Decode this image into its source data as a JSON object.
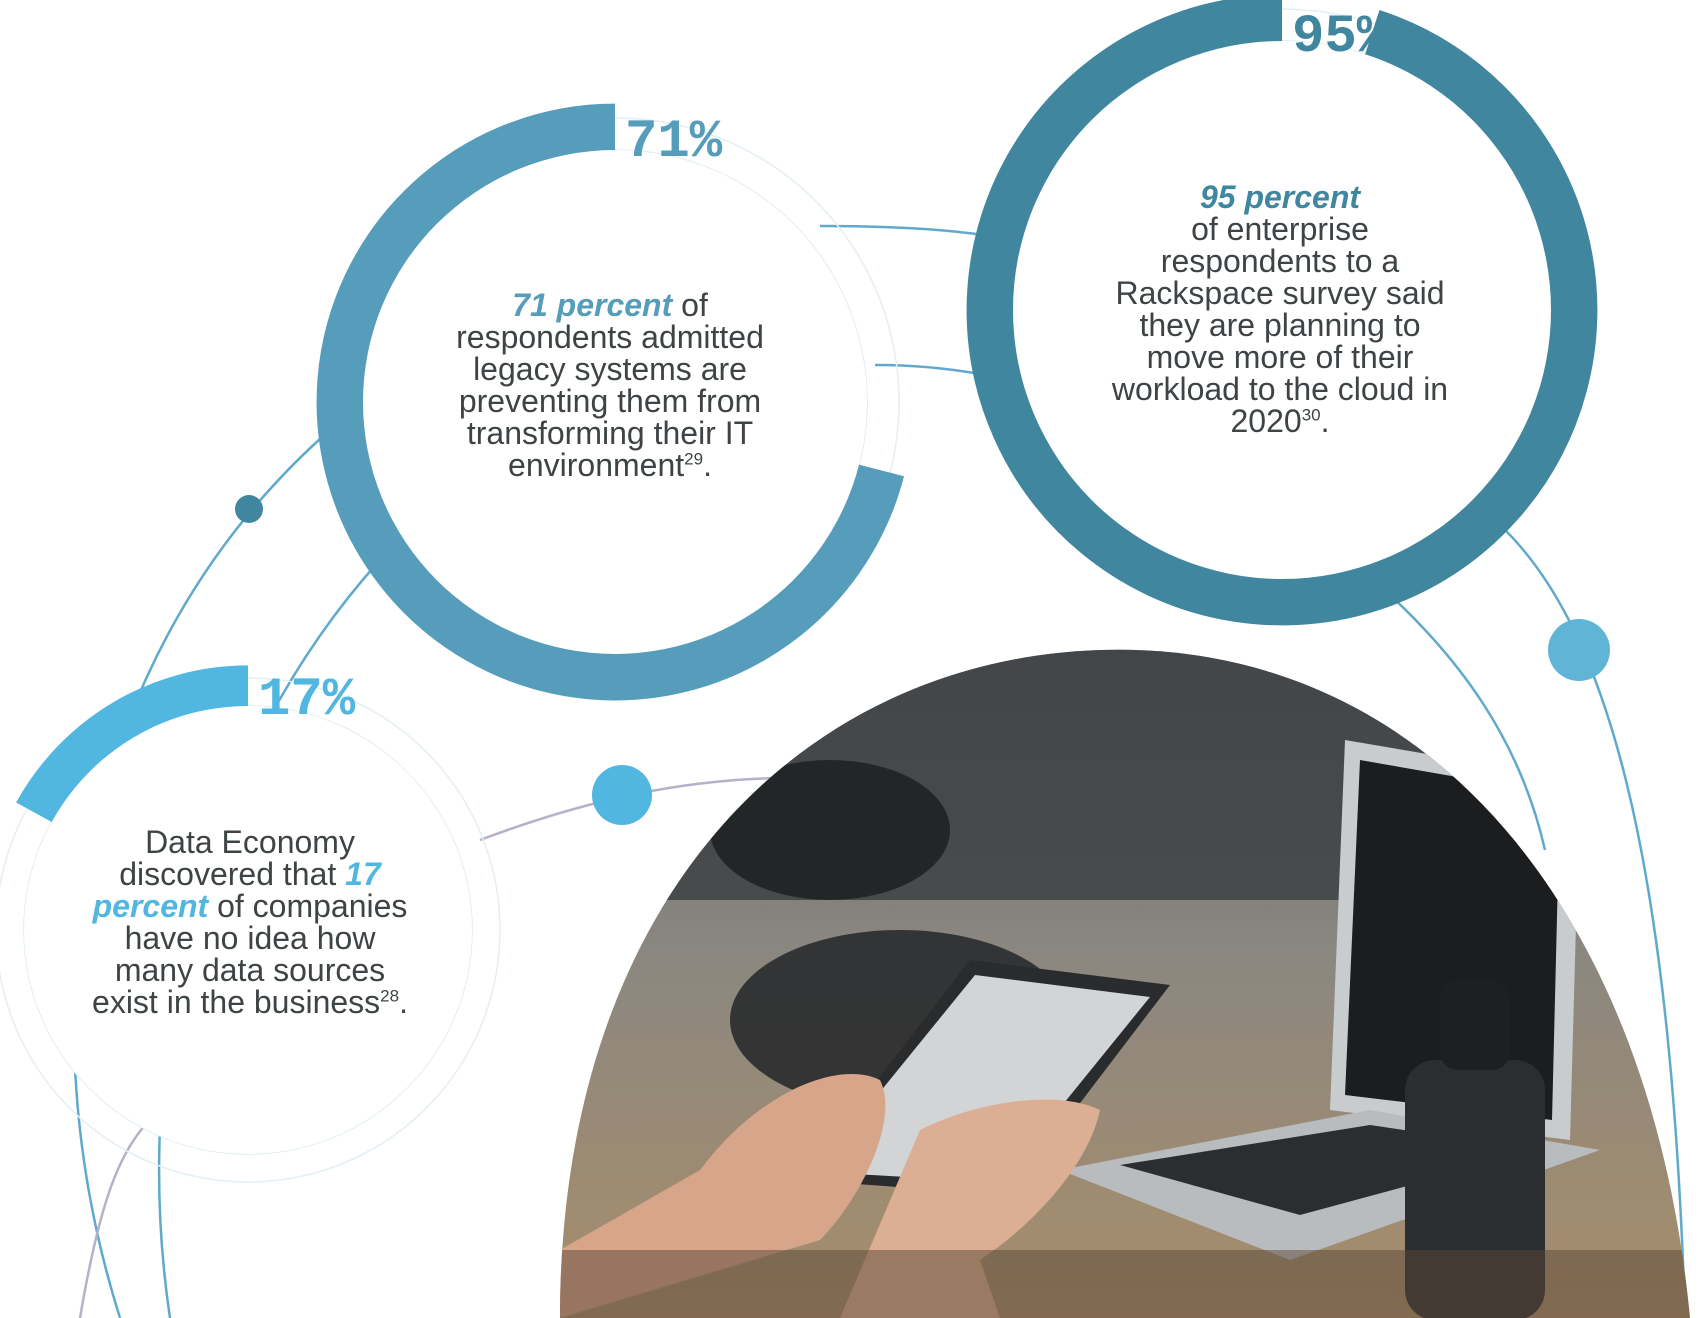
{
  "colors": {
    "stat_71": "#559dba",
    "stat_95": "#40869f",
    "stat_17": "#52b7e0",
    "connector_line": "#60a9cc",
    "connector_line_light": "#b7b0c8",
    "body_text": "#3e4446"
  },
  "chart_data": [
    {
      "type": "pie",
      "label": "71%",
      "values": [
        71,
        29
      ],
      "description": {
        "highlight": "71 percent",
        "text_after": " of respondents admitted legacy systems are preventing them from transforming their IT environment",
        "footnote": "29",
        "end": "."
      }
    },
    {
      "type": "pie",
      "label": "95%",
      "values": [
        95,
        5
      ],
      "description": {
        "highlight": "95 percent",
        "text_after": "of enterprise respondents to a Rackspace survey said they are planning to move more of their workload to the cloud in 2020",
        "footnote": "30",
        "end": "."
      }
    },
    {
      "type": "pie",
      "label": "17%",
      "values": [
        17,
        83
      ],
      "description": {
        "text_before": "Data Economy discovered that ",
        "highlight": "17 percent",
        "text_after": " of companies have no idea how many data sources exist in the business",
        "footnote": "28",
        "end": "."
      }
    }
  ],
  "photo": {
    "icon": "hands-tablet-laptop-photo"
  }
}
